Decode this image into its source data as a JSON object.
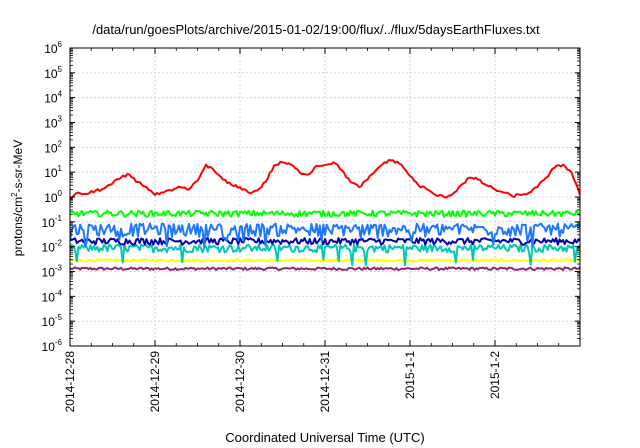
{
  "chart_data": {
    "type": "line",
    "title": "/data/run/goesPlots/archive/2015-01-02/19:00/flux/../flux/5daysEarthFluxes.txt",
    "xlabel": "Coordinated Universal Time (UTC)",
    "ylabel": "protons/cm²-s-sr-MeV",
    "ylabel_parts": {
      "pre": "protons/cm",
      "sup": "2",
      "post": "-s-sr-MeV"
    },
    "yscale": "log",
    "ylim_exp": [
      -6,
      6
    ],
    "ytick_exponents": [
      "-6",
      "-5",
      "-4",
      "-3",
      "-2",
      "-1",
      "0",
      "1",
      "2",
      "3",
      "4",
      "5",
      "6"
    ],
    "ytick_base": "10",
    "xlim_days": [
      0,
      6.0
    ],
    "xticks": [
      {
        "label": "2014-12-28",
        "day": 0
      },
      {
        "label": "2014-12-29",
        "day": 1
      },
      {
        "label": "2014-12-30",
        "day": 2
      },
      {
        "label": "2014-12-31",
        "day": 3
      },
      {
        "label": "2015-1-1",
        "day": 4
      },
      {
        "label": "2015-1-2",
        "day": 5
      }
    ],
    "grid": true,
    "legend": "none",
    "series": [
      {
        "color": "#ff0000",
        "x_days": [
          0.0,
          0.1,
          0.2,
          0.3,
          0.4,
          0.5,
          0.6,
          0.7,
          0.8,
          0.9,
          1.0,
          1.1,
          1.2,
          1.3,
          1.4,
          1.5,
          1.6,
          1.7,
          1.8,
          1.9,
          2.0,
          2.1,
          2.2,
          2.3,
          2.4,
          2.5,
          2.6,
          2.7,
          2.8,
          2.9,
          3.0,
          3.1,
          3.2,
          3.3,
          3.4,
          3.5,
          3.6,
          3.7,
          3.8,
          3.9,
          4.0,
          4.1,
          4.2,
          4.3,
          4.4,
          4.5,
          4.6,
          4.7,
          4.8,
          4.9,
          5.0,
          5.1,
          5.2,
          5.3,
          5.4,
          5.5,
          5.6,
          5.7,
          5.8,
          5.9,
          6.0
        ],
        "values": [
          0.8,
          1.5,
          1.3,
          1.8,
          2.2,
          3.5,
          6,
          8,
          4,
          2.5,
          1.2,
          1.5,
          1.8,
          2.5,
          2.0,
          4.5,
          20,
          11,
          5,
          3,
          2.5,
          1.5,
          1.8,
          4,
          18,
          25,
          20,
          10,
          8,
          18,
          20,
          25,
          12,
          4,
          2.5,
          5,
          12,
          25,
          30,
          20,
          7,
          3,
          2,
          1.2,
          1.0,
          1.3,
          3,
          6,
          5,
          3,
          2,
          1.5,
          1.1,
          1.2,
          1.5,
          2.5,
          6,
          15,
          20,
          10,
          1.2
        ]
      },
      {
        "color": "#00ff00",
        "baseline": 0.22
      },
      {
        "color": "#1e78ff",
        "baseline": 0.055
      },
      {
        "color": "#0000b4",
        "baseline": 0.017
      },
      {
        "color": "#00c8b4",
        "baseline": 0.009
      },
      {
        "color": "#ffff00",
        "baseline": 0.0028
      },
      {
        "color": "#8b2a6e",
        "baseline": 0.0013
      }
    ]
  }
}
